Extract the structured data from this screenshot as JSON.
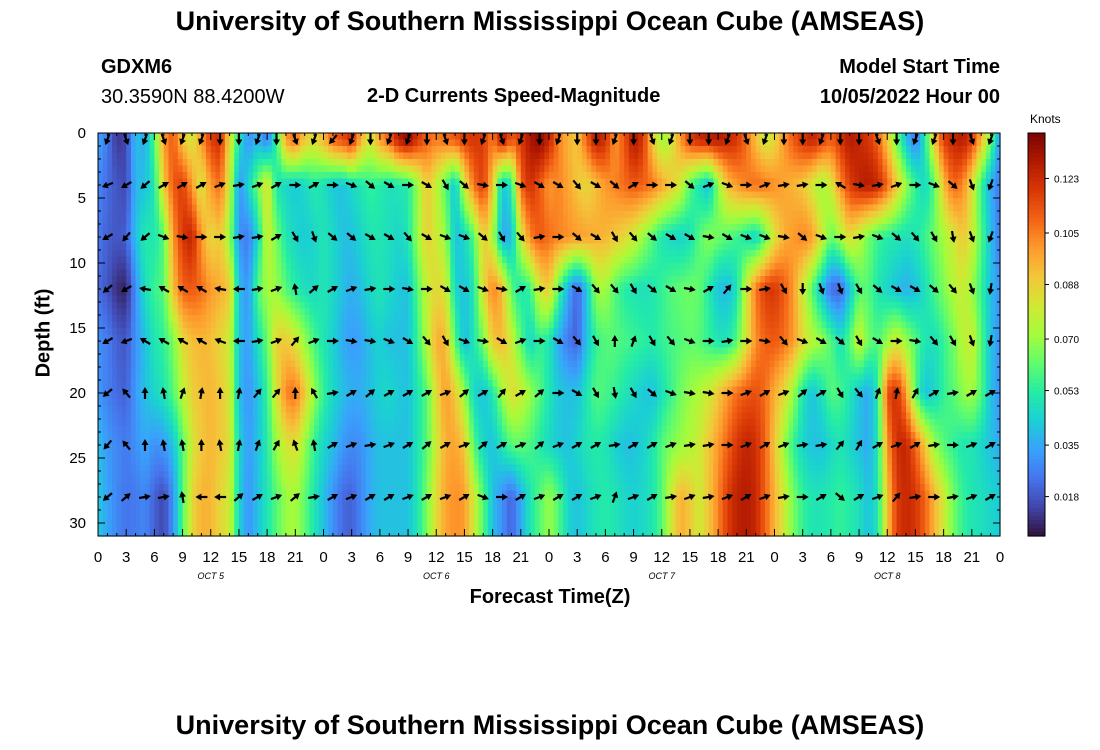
{
  "header": {
    "title": "University of Southern Mississippi Ocean Cube (AMSEAS)",
    "station_id": "GDXM6",
    "coords": "30.3590N  88.4200W",
    "plot_title": "2-D Currents Speed-Magnitude",
    "model_start_label": "Model Start Time",
    "model_start_value": "10/05/2022 Hour 00"
  },
  "footer": {
    "title": "University of Southern Mississippi Ocean Cube (AMSEAS)"
  },
  "chart_data": {
    "type": "heatmap",
    "xlabel": "Forecast Time(Z)",
    "ylabel": "Depth (ft)",
    "x_ticks": [
      "0",
      "3",
      "6",
      "9",
      "12",
      "15",
      "18",
      "21",
      "0",
      "3",
      "6",
      "9",
      "12",
      "15",
      "18",
      "21",
      "0",
      "3",
      "6",
      "9",
      "12",
      "15",
      "18",
      "21",
      "0",
      "3",
      "6",
      "9",
      "12",
      "15",
      "18",
      "21",
      "0"
    ],
    "x_range_hours": [
      0,
      96
    ],
    "day_labels": [
      {
        "label": "OCT 5",
        "hour": 12
      },
      {
        "label": "OCT 6",
        "hour": 36
      },
      {
        "label": "OCT 7",
        "hour": 60
      },
      {
        "label": "OCT 8",
        "hour": 84
      }
    ],
    "y_ticks": [
      "0",
      "5",
      "10",
      "15",
      "20",
      "25",
      "30"
    ],
    "y_range_ft": [
      0,
      31
    ],
    "colorbar": {
      "unit": "Knots",
      "ticks": [
        "0.123",
        "0.105",
        "0.088",
        "0.070",
        "0.053",
        "0.035",
        "0.018"
      ],
      "tick_values": [
        0.123,
        0.105,
        0.088,
        0.07,
        0.053,
        0.035,
        0.018
      ],
      "range": [
        0.005,
        0.138
      ],
      "colors": [
        "#30123b",
        "#4145ab",
        "#4675ed",
        "#39a2fc",
        "#1bcfd4",
        "#24eca6",
        "#61fc6c",
        "#a4fc3b",
        "#d1e834",
        "#f3c63a",
        "#fe9b2d",
        "#f36315",
        "#d93806",
        "#b11901",
        "#7a0403"
      ]
    },
    "depths_ft": [
      0.5,
      4,
      8,
      12,
      16,
      20,
      24,
      28
    ],
    "speed_knots": [
      [
        0.035,
        0.025,
        0.012,
        0.015,
        0.04,
        0.035,
        0.06,
        0.1,
        0.112,
        0.09,
        0.08,
        0.1,
        0.118,
        0.122,
        0.085,
        0.05,
        0.03,
        0.038,
        0.025,
        0.055,
        0.1,
        0.108,
        0.09,
        0.084,
        0.094,
        0.11,
        0.115,
        0.122,
        0.095,
        0.08,
        0.1,
        0.11,
        0.128,
        0.134,
        0.12,
        0.11,
        0.105,
        0.108,
        0.112,
        0.118,
        0.12,
        0.118,
        0.105,
        0.128,
        0.112,
        0.118,
        0.13,
        0.135,
        0.125,
        0.105,
        0.095,
        0.09,
        0.11,
        0.128,
        0.122,
        0.1,
        0.112,
        0.13,
        0.12,
        0.09,
        0.07,
        0.08,
        0.1,
        0.118,
        0.124,
        0.126,
        0.128,
        0.124,
        0.12,
        0.108,
        0.092,
        0.08,
        0.085,
        0.1,
        0.112,
        0.12,
        0.125,
        0.118,
        0.11,
        0.12,
        0.128,
        0.124,
        0.12,
        0.11,
        0.09,
        0.064,
        0.04,
        0.025,
        0.05,
        0.09,
        0.118,
        0.124,
        0.128,
        0.118,
        0.095,
        0.065,
        0.03
      ],
      [
        0.028,
        0.022,
        0.018,
        0.015,
        0.038,
        0.04,
        0.05,
        0.09,
        0.112,
        0.118,
        0.1,
        0.08,
        0.1,
        0.108,
        0.08,
        0.03,
        0.045,
        0.065,
        0.085,
        0.05,
        0.045,
        0.042,
        0.046,
        0.052,
        0.048,
        0.042,
        0.04,
        0.046,
        0.05,
        0.055,
        0.052,
        0.048,
        0.05,
        0.052,
        0.07,
        0.09,
        0.078,
        0.06,
        0.04,
        0.08,
        0.108,
        0.118,
        0.09,
        0.04,
        0.05,
        0.11,
        0.122,
        0.112,
        0.1,
        0.104,
        0.098,
        0.09,
        0.085,
        0.092,
        0.1,
        0.104,
        0.108,
        0.112,
        0.11,
        0.106,
        0.098,
        0.09,
        0.08,
        0.06,
        0.048,
        0.04,
        0.068,
        0.092,
        0.1,
        0.105,
        0.108,
        0.106,
        0.102,
        0.098,
        0.094,
        0.09,
        0.08,
        0.07,
        0.08,
        0.102,
        0.118,
        0.125,
        0.128,
        0.124,
        0.11,
        0.09,
        0.07,
        0.055,
        0.045,
        0.06,
        0.092,
        0.11,
        0.104,
        0.084,
        0.055,
        0.035,
        0.025
      ],
      [
        0.025,
        0.02,
        0.018,
        0.02,
        0.04,
        0.052,
        0.05,
        0.06,
        0.1,
        0.12,
        0.126,
        0.1,
        0.085,
        0.09,
        0.07,
        0.03,
        0.025,
        0.045,
        0.08,
        0.065,
        0.05,
        0.045,
        0.042,
        0.045,
        0.05,
        0.046,
        0.04,
        0.04,
        0.045,
        0.05,
        0.05,
        0.048,
        0.045,
        0.05,
        0.07,
        0.088,
        0.08,
        0.07,
        0.04,
        0.045,
        0.06,
        0.09,
        0.075,
        0.035,
        0.038,
        0.08,
        0.104,
        0.112,
        0.108,
        0.104,
        0.102,
        0.1,
        0.098,
        0.096,
        0.094,
        0.09,
        0.086,
        0.08,
        0.07,
        0.06,
        0.05,
        0.046,
        0.044,
        0.048,
        0.06,
        0.068,
        0.064,
        0.06,
        0.056,
        0.05,
        0.044,
        0.06,
        0.082,
        0.095,
        0.1,
        0.104,
        0.1,
        0.082,
        0.062,
        0.072,
        0.086,
        0.076,
        0.064,
        0.056,
        0.052,
        0.05,
        0.048,
        0.05,
        0.056,
        0.064,
        0.072,
        0.08,
        0.09,
        0.08,
        0.06,
        0.04,
        0.025
      ],
      [
        0.022,
        0.018,
        0.01,
        0.008,
        0.03,
        0.048,
        0.056,
        0.06,
        0.092,
        0.11,
        0.112,
        0.108,
        0.1,
        0.096,
        0.09,
        0.04,
        0.03,
        0.06,
        0.072,
        0.07,
        0.06,
        0.052,
        0.048,
        0.046,
        0.05,
        0.046,
        0.04,
        0.036,
        0.04,
        0.046,
        0.05,
        0.046,
        0.042,
        0.04,
        0.06,
        0.078,
        0.086,
        0.082,
        0.045,
        0.04,
        0.05,
        0.085,
        0.105,
        0.094,
        0.06,
        0.05,
        0.055,
        0.082,
        0.09,
        0.06,
        0.036,
        0.02,
        0.04,
        0.07,
        0.072,
        0.06,
        0.052,
        0.05,
        0.048,
        0.05,
        0.055,
        0.06,
        0.062,
        0.064,
        0.062,
        0.052,
        0.04,
        0.038,
        0.048,
        0.08,
        0.106,
        0.118,
        0.12,
        0.112,
        0.1,
        0.08,
        0.06,
        0.04,
        0.022,
        0.02,
        0.04,
        0.06,
        0.06,
        0.05,
        0.045,
        0.04,
        0.036,
        0.04,
        0.048,
        0.058,
        0.066,
        0.074,
        0.08,
        0.07,
        0.055,
        0.04,
        0.03
      ],
      [
        0.03,
        0.026,
        0.02,
        0.018,
        0.03,
        0.04,
        0.05,
        0.055,
        0.065,
        0.085,
        0.092,
        0.094,
        0.092,
        0.086,
        0.08,
        0.04,
        0.032,
        0.048,
        0.062,
        0.088,
        0.09,
        0.082,
        0.07,
        0.058,
        0.05,
        0.044,
        0.036,
        0.032,
        0.034,
        0.04,
        0.044,
        0.04,
        0.04,
        0.04,
        0.055,
        0.075,
        0.096,
        0.094,
        0.06,
        0.038,
        0.05,
        0.065,
        0.09,
        0.094,
        0.08,
        0.06,
        0.045,
        0.055,
        0.05,
        0.035,
        0.025,
        0.02,
        0.04,
        0.055,
        0.06,
        0.06,
        0.058,
        0.056,
        0.054,
        0.052,
        0.055,
        0.058,
        0.06,
        0.062,
        0.06,
        0.055,
        0.05,
        0.05,
        0.06,
        0.082,
        0.102,
        0.11,
        0.112,
        0.108,
        0.1,
        0.085,
        0.075,
        0.07,
        0.06,
        0.048,
        0.06,
        0.08,
        0.064,
        0.058,
        0.07,
        0.08,
        0.07,
        0.06,
        0.05,
        0.048,
        0.055,
        0.064,
        0.075,
        0.08,
        0.06,
        0.04,
        0.03
      ],
      [
        0.032,
        0.026,
        0.022,
        0.02,
        0.032,
        0.04,
        0.045,
        0.05,
        0.06,
        0.075,
        0.088,
        0.092,
        0.094,
        0.09,
        0.082,
        0.04,
        0.03,
        0.04,
        0.055,
        0.082,
        0.104,
        0.108,
        0.09,
        0.07,
        0.055,
        0.046,
        0.04,
        0.036,
        0.036,
        0.04,
        0.044,
        0.046,
        0.042,
        0.04,
        0.05,
        0.06,
        0.085,
        0.1,
        0.09,
        0.07,
        0.045,
        0.04,
        0.05,
        0.07,
        0.085,
        0.08,
        0.07,
        0.06,
        0.05,
        0.042,
        0.04,
        0.04,
        0.05,
        0.06,
        0.058,
        0.055,
        0.05,
        0.046,
        0.042,
        0.04,
        0.048,
        0.056,
        0.064,
        0.07,
        0.074,
        0.08,
        0.09,
        0.1,
        0.108,
        0.112,
        0.114,
        0.108,
        0.096,
        0.085,
        0.07,
        0.05,
        0.04,
        0.048,
        0.06,
        0.058,
        0.05,
        0.04,
        0.035,
        0.05,
        0.115,
        0.122,
        0.1,
        0.06,
        0.04,
        0.045,
        0.055,
        0.06,
        0.068,
        0.072,
        0.06,
        0.04,
        0.03
      ],
      [
        0.04,
        0.032,
        0.028,
        0.025,
        0.03,
        0.035,
        0.03,
        0.032,
        0.04,
        0.06,
        0.08,
        0.09,
        0.094,
        0.09,
        0.084,
        0.045,
        0.032,
        0.04,
        0.052,
        0.07,
        0.082,
        0.084,
        0.07,
        0.055,
        0.045,
        0.04,
        0.032,
        0.028,
        0.03,
        0.036,
        0.04,
        0.04,
        0.04,
        0.04,
        0.05,
        0.06,
        0.08,
        0.096,
        0.098,
        0.09,
        0.06,
        0.045,
        0.04,
        0.05,
        0.06,
        0.062,
        0.058,
        0.052,
        0.046,
        0.042,
        0.04,
        0.045,
        0.05,
        0.052,
        0.05,
        0.044,
        0.04,
        0.04,
        0.044,
        0.05,
        0.06,
        0.066,
        0.07,
        0.074,
        0.08,
        0.09,
        0.1,
        0.11,
        0.12,
        0.125,
        0.122,
        0.11,
        0.09,
        0.07,
        0.055,
        0.045,
        0.04,
        0.04,
        0.045,
        0.05,
        0.045,
        0.04,
        0.035,
        0.05,
        0.1,
        0.122,
        0.125,
        0.11,
        0.09,
        0.07,
        0.06,
        0.055,
        0.05,
        0.05,
        0.045,
        0.04,
        0.035
      ],
      [
        0.042,
        0.034,
        0.028,
        0.024,
        0.025,
        0.028,
        0.02,
        0.015,
        0.03,
        0.06,
        0.085,
        0.095,
        0.094,
        0.086,
        0.08,
        0.045,
        0.03,
        0.04,
        0.05,
        0.06,
        0.07,
        0.072,
        0.062,
        0.05,
        0.04,
        0.03,
        0.022,
        0.02,
        0.028,
        0.036,
        0.04,
        0.04,
        0.04,
        0.04,
        0.05,
        0.065,
        0.085,
        0.098,
        0.102,
        0.1,
        0.08,
        0.06,
        0.04,
        0.03,
        0.02,
        0.035,
        0.05,
        0.06,
        0.07,
        0.06,
        0.045,
        0.04,
        0.045,
        0.05,
        0.052,
        0.05,
        0.046,
        0.044,
        0.046,
        0.05,
        0.06,
        0.08,
        0.096,
        0.09,
        0.08,
        0.09,
        0.104,
        0.118,
        0.126,
        0.128,
        0.124,
        0.11,
        0.095,
        0.08,
        0.065,
        0.055,
        0.05,
        0.05,
        0.052,
        0.055,
        0.052,
        0.048,
        0.04,
        0.05,
        0.09,
        0.118,
        0.124,
        0.12,
        0.11,
        0.095,
        0.08,
        0.065,
        0.055,
        0.05,
        0.048,
        0.045,
        0.042
      ]
    ],
    "vector_hours": [
      1,
      3,
      5,
      7,
      9,
      11,
      13,
      15,
      17,
      19,
      21,
      23,
      25,
      27,
      29,
      31,
      33,
      35,
      37,
      39,
      41,
      43,
      45,
      47,
      49,
      51,
      53,
      55,
      57,
      59,
      61,
      63,
      65,
      67,
      69,
      71,
      73,
      75,
      77,
      79,
      81,
      83,
      85,
      87,
      89,
      91,
      93,
      95
    ],
    "vector_depths_ft": [
      0.5,
      4,
      8,
      12,
      16,
      20,
      24,
      28
    ],
    "vector_dir_deg": [
      [
        200,
        160,
        200,
        160,
        200,
        200,
        180,
        180,
        200,
        180,
        160,
        200,
        220,
        200,
        180,
        200,
        200,
        180,
        160,
        180,
        200,
        160,
        200,
        180,
        200,
        180,
        180,
        200,
        180,
        160,
        200,
        180,
        180,
        200,
        160,
        200,
        180,
        180,
        200,
        180,
        180,
        160,
        180,
        200,
        200,
        180,
        160,
        200
      ],
      [
        250,
        240,
        230,
        60,
        60,
        60,
        70,
        80,
        70,
        60,
        90,
        60,
        90,
        110,
        130,
        120,
        90,
        120,
        150,
        130,
        100,
        90,
        110,
        120,
        120,
        140,
        120,
        130,
        60,
        90,
        90,
        130,
        70,
        110,
        90,
        70,
        80,
        80,
        90,
        300,
        100,
        80,
        70,
        90,
        110,
        130,
        160,
        200
      ],
      [
        240,
        220,
        230,
        110,
        100,
        90,
        90,
        80,
        80,
        60,
        150,
        160,
        130,
        130,
        120,
        120,
        140,
        120,
        110,
        110,
        130,
        150,
        140,
        80,
        90,
        130,
        120,
        150,
        140,
        130,
        120,
        120,
        100,
        120,
        110,
        110,
        100,
        130,
        110,
        90,
        80,
        110,
        130,
        140,
        150,
        170,
        160,
        200
      ],
      [
        230,
        240,
        280,
        300,
        300,
        300,
        280,
        270,
        80,
        70,
        350,
        50,
        60,
        70,
        80,
        90,
        100,
        90,
        120,
        120,
        110,
        100,
        60,
        80,
        90,
        120,
        140,
        140,
        150,
        130,
        120,
        100,
        60,
        40,
        90,
        80,
        150,
        180,
        160,
        160,
        150,
        130,
        120,
        120,
        130,
        140,
        160,
        190
      ],
      [
        240,
        250,
        300,
        300,
        300,
        300,
        290,
        270,
        80,
        70,
        40,
        70,
        90,
        100,
        100,
        110,
        120,
        140,
        150,
        110,
        100,
        120,
        70,
        90,
        120,
        140,
        150,
        0,
        20,
        150,
        140,
        110,
        90,
        80,
        90,
        100,
        140,
        110,
        120,
        130,
        150,
        120,
        90,
        100,
        140,
        150,
        160,
        190
      ],
      [
        230,
        320,
        0,
        350,
        20,
        10,
        0,
        10,
        40,
        40,
        0,
        330,
        80,
        60,
        50,
        60,
        60,
        60,
        70,
        50,
        60,
        40,
        60,
        50,
        90,
        120,
        150,
        170,
        150,
        130,
        110,
        100,
        100,
        90,
        70,
        60,
        70,
        50,
        60,
        150,
        140,
        20,
        10,
        30,
        60,
        80,
        60,
        60
      ],
      [
        220,
        320,
        0,
        350,
        350,
        0,
        350,
        10,
        20,
        30,
        340,
        350,
        60,
        70,
        80,
        70,
        60,
        50,
        60,
        70,
        50,
        60,
        70,
        50,
        70,
        60,
        60,
        80,
        60,
        60,
        70,
        80,
        80,
        90,
        70,
        60,
        70,
        80,
        80,
        40,
        30,
        60,
        70,
        60,
        80,
        90,
        70,
        60
      ],
      [
        230,
        50,
        80,
        80,
        350,
        270,
        270,
        50,
        60,
        70,
        50,
        80,
        60,
        70,
        60,
        60,
        70,
        60,
        70,
        60,
        110,
        90,
        60,
        70,
        60,
        60,
        70,
        20,
        70,
        60,
        80,
        70,
        80,
        70,
        60,
        70,
        80,
        90,
        60,
        130,
        60,
        70,
        40,
        80,
        90,
        80,
        70,
        60
      ]
    ]
  }
}
